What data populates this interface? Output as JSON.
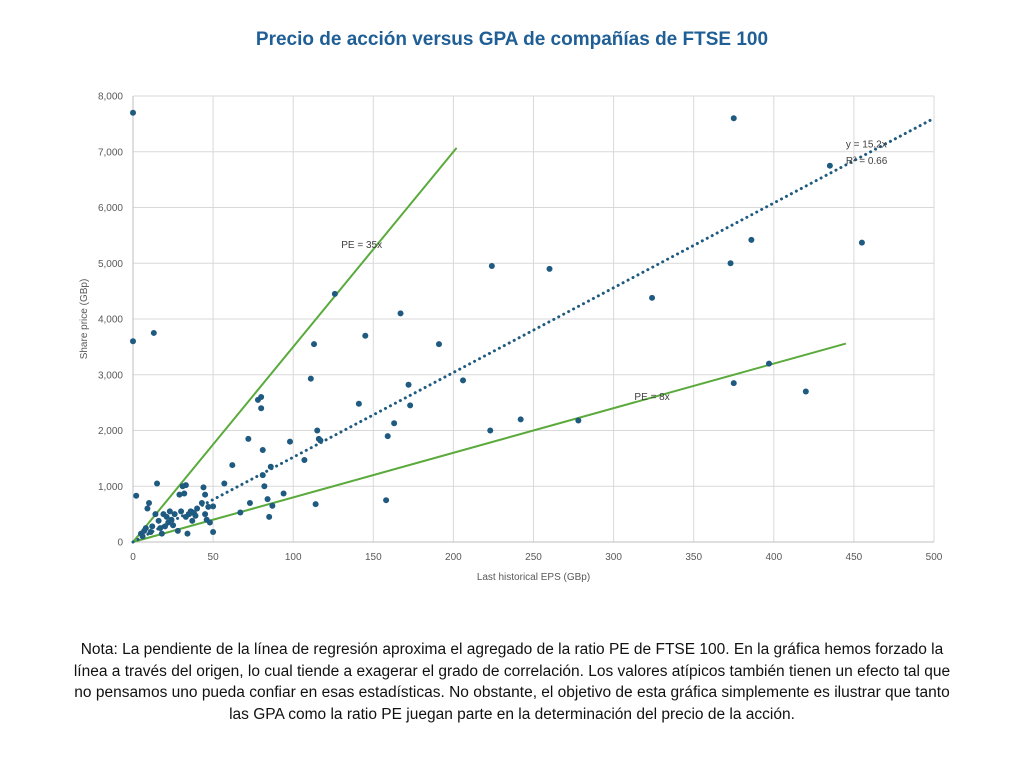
{
  "title": "Precio de acción versus GPA de compañías de FTSE 100",
  "note": "Nota: La pendiente de la línea de regresión aproxima el agregado de la ratio PE de FTSE 100. En la gráfica hemos forzado la línea a través del origen, lo cual tiende a exagerar el grado de correlación. Los valores atípicos también tienen un efecto tal que no pensamos uno pueda confiar en esas estadísticas. No obstante, el objetivo de esta gráfica simplemente es ilustrar que tanto las GPA como la ratio PE juegan parte en la determinación del precio de la acción.",
  "colors": {
    "title": "#1f5f96",
    "points": "#1f5a80",
    "trendline": "#1f5a80",
    "pe_lines": "#5aaa3c",
    "grid": "#d9d9d9"
  },
  "chart_data": {
    "type": "scatter",
    "xlabel": "Last historical EPS (GBp)",
    "ylabel": "Share price (GBp)",
    "xlim": [
      0,
      500
    ],
    "ylim": [
      0,
      8000
    ],
    "xticks": [
      0,
      50,
      100,
      150,
      200,
      250,
      300,
      350,
      400,
      450,
      500
    ],
    "yticks": [
      0,
      1000,
      2000,
      3000,
      4000,
      5000,
      6000,
      7000,
      8000
    ],
    "xtick_labels": [
      "0",
      "50",
      "100",
      "150",
      "200",
      "250",
      "300",
      "350",
      "400",
      "450",
      "500"
    ],
    "ytick_labels": [
      "0",
      "1,000",
      "2,000",
      "3,000",
      "4,000",
      "5,000",
      "6,000",
      "7,000",
      "8,000"
    ],
    "grid": true,
    "points": [
      [
        0,
        7700
      ],
      [
        0,
        3600
      ],
      [
        2,
        830
      ],
      [
        5,
        150
      ],
      [
        6,
        100
      ],
      [
        7,
        200
      ],
      [
        8,
        250
      ],
      [
        9,
        600
      ],
      [
        10,
        700
      ],
      [
        11,
        180
      ],
      [
        12,
        280
      ],
      [
        13,
        3750
      ],
      [
        14,
        500
      ],
      [
        15,
        1050
      ],
      [
        16,
        380
      ],
      [
        17,
        250
      ],
      [
        18,
        150
      ],
      [
        19,
        500
      ],
      [
        20,
        280
      ],
      [
        21,
        450
      ],
      [
        22,
        350
      ],
      [
        23,
        550
      ],
      [
        24,
        400
      ],
      [
        25,
        300
      ],
      [
        26,
        500
      ],
      [
        28,
        200
      ],
      [
        29,
        850
      ],
      [
        30,
        550
      ],
      [
        31,
        1000
      ],
      [
        32,
        870
      ],
      [
        33,
        1020
      ],
      [
        33,
        450
      ],
      [
        34,
        150
      ],
      [
        35,
        500
      ],
      [
        36,
        550
      ],
      [
        37,
        380
      ],
      [
        38,
        520
      ],
      [
        39,
        470
      ],
      [
        40,
        600
      ],
      [
        43,
        700
      ],
      [
        44,
        980
      ],
      [
        45,
        500
      ],
      [
        45,
        850
      ],
      [
        46,
        400
      ],
      [
        47,
        630
      ],
      [
        48,
        350
      ],
      [
        50,
        180
      ],
      [
        50,
        640
      ],
      [
        57,
        1050
      ],
      [
        62,
        1380
      ],
      [
        67,
        530
      ],
      [
        72,
        1850
      ],
      [
        73,
        700
      ],
      [
        78,
        2550
      ],
      [
        80,
        2600
      ],
      [
        80,
        2400
      ],
      [
        81,
        1650
      ],
      [
        81,
        1200
      ],
      [
        82,
        1000
      ],
      [
        84,
        770
      ],
      [
        85,
        450
      ],
      [
        86,
        1350
      ],
      [
        87,
        650
      ],
      [
        94,
        870
      ],
      [
        98,
        1800
      ],
      [
        107,
        1470
      ],
      [
        111,
        2930
      ],
      [
        113,
        3550
      ],
      [
        114,
        680
      ],
      [
        115,
        2000
      ],
      [
        116,
        1850
      ],
      [
        117,
        1820
      ],
      [
        126,
        4450
      ],
      [
        141,
        2480
      ],
      [
        145,
        3700
      ],
      [
        158,
        750
      ],
      [
        159,
        1900
      ],
      [
        163,
        2130
      ],
      [
        167,
        4100
      ],
      [
        172,
        2820
      ],
      [
        173,
        2450
      ],
      [
        191,
        3550
      ],
      [
        206,
        2900
      ],
      [
        223,
        2000
      ],
      [
        224,
        4950
      ],
      [
        242,
        2200
      ],
      [
        260,
        4900
      ],
      [
        278,
        2180
      ],
      [
        324,
        4380
      ],
      [
        373,
        5000
      ],
      [
        375,
        7600
      ],
      [
        375,
        2850
      ],
      [
        386,
        5420
      ],
      [
        397,
        3200
      ],
      [
        420,
        2700
      ],
      [
        435,
        6750
      ],
      [
        455,
        5370
      ]
    ],
    "trendline": {
      "label_equation": "y = 15.2x",
      "label_r2": "R² = 0.66",
      "slope": 15.2,
      "x_range": [
        0,
        500
      ]
    },
    "reference_lines": [
      {
        "label": "PE = 35x",
        "slope": 35,
        "x_range": [
          0,
          202
        ]
      },
      {
        "label": "PE = 8x",
        "slope": 8,
        "x_range": [
          0,
          445
        ]
      }
    ],
    "annotations": [
      {
        "text": "PE = 35x",
        "x": 130,
        "y": 5270
      },
      {
        "text": "PE = 8x",
        "x": 313,
        "y": 2550
      },
      {
        "text": "y = 15.2x",
        "x": 445,
        "y": 7080
      },
      {
        "text": "R² = 0.66",
        "x": 445,
        "y": 6780
      }
    ]
  }
}
